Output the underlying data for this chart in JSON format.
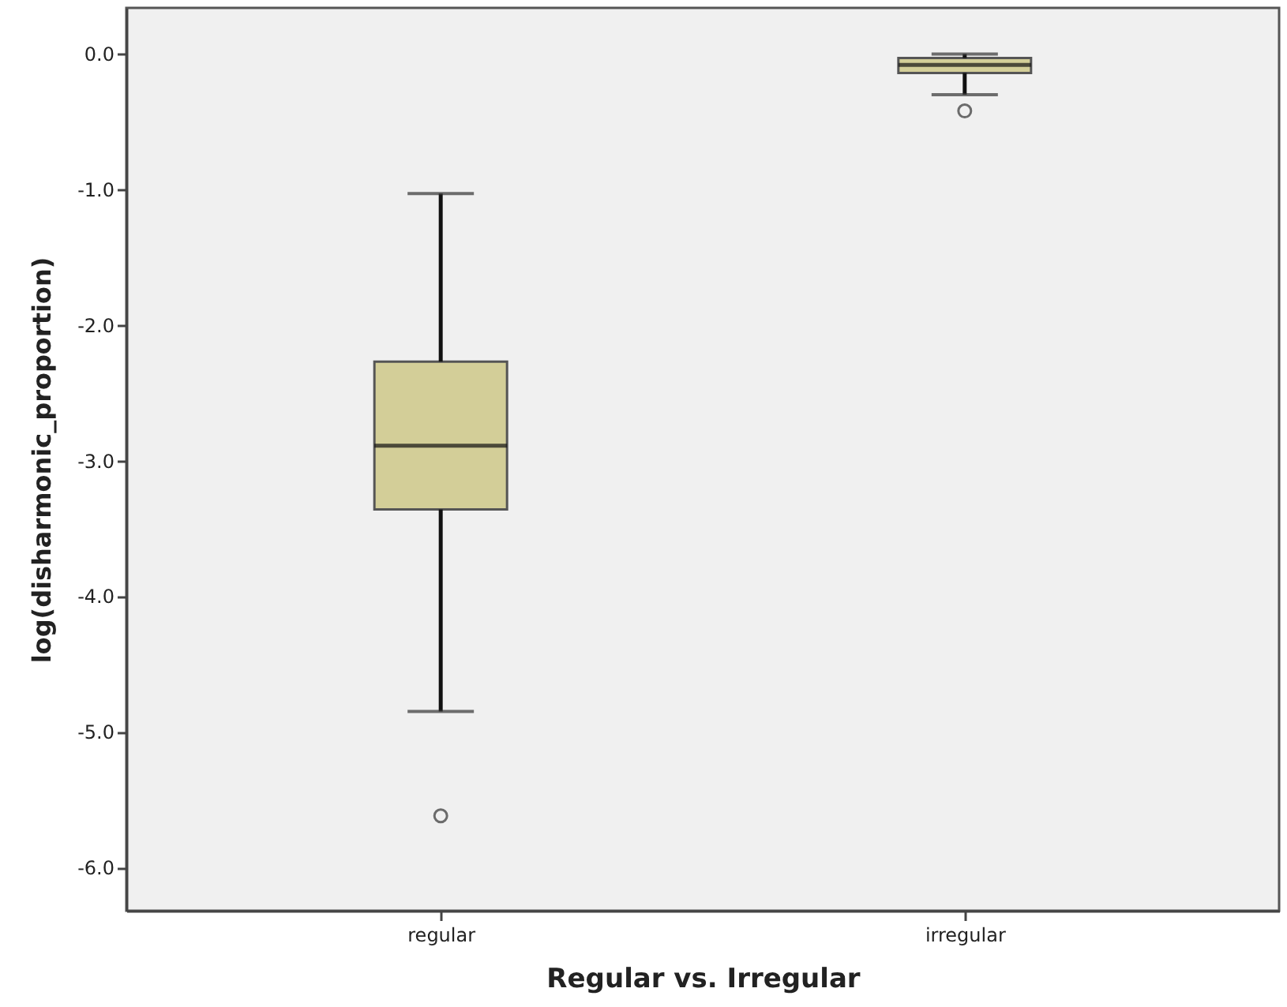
{
  "chart_data": {
    "type": "box",
    "xlabel": "Regular vs. Irregular",
    "ylabel": "log(disharmonic_proportion)",
    "categories": [
      "regular",
      "irregular"
    ],
    "boxes": [
      {
        "low": -4.85,
        "q1": -3.36,
        "median": -2.89,
        "q3": -2.27,
        "high": -1.03,
        "outliers": [
          -5.62
        ]
      },
      {
        "low": -0.3,
        "q1": -0.14,
        "median": -0.08,
        "q3": -0.03,
        "high": 0.0,
        "outliers": [
          -0.42
        ]
      }
    ],
    "color": "#d3ce98",
    "ylim": [
      -6.32,
      0.34
    ],
    "yticks": [
      {
        "value": 0,
        "label": "0.0"
      },
      {
        "value": -1,
        "label": "-1.0"
      },
      {
        "value": -2,
        "label": "-2.0"
      },
      {
        "value": -3,
        "label": "-3.0"
      },
      {
        "value": -4,
        "label": "-4.0"
      },
      {
        "value": -5,
        "label": "-5.0"
      },
      {
        "value": -6,
        "label": "-6.0"
      }
    ]
  }
}
